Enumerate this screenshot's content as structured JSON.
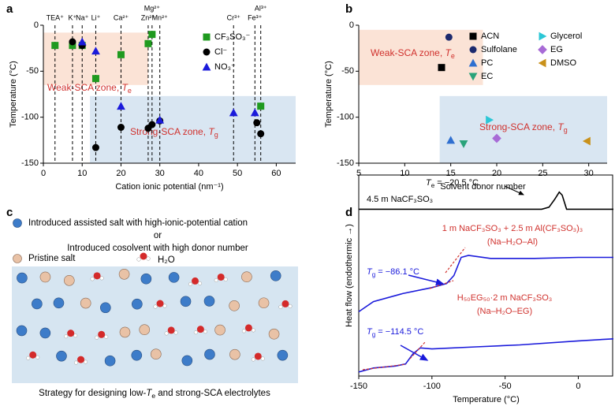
{
  "chart_data": [
    {
      "type": "scatter",
      "panel": "a",
      "ylabel": "Temperature (°C)",
      "xlabel": "Cation ionic potential (nm⁻¹)",
      "xlim": [
        0,
        65
      ],
      "xticks": [
        0,
        10,
        20,
        30,
        40,
        50,
        60
      ],
      "ylim": [
        -150,
        0
      ],
      "yticks": [
        0,
        -50,
        -100,
        -150
      ],
      "reference_lines": {
        "labels": [
          "TEA⁺",
          "K⁺",
          "Na⁺",
          "Li⁺",
          "Ca²⁺",
          "Zn²⁺",
          "Mg²⁺",
          "Mn²⁺",
          "Cr³⁺",
          "Fe³⁺",
          "Al³⁺"
        ],
        "x": [
          3,
          7.5,
          10,
          13.5,
          20,
          27,
          28,
          30,
          49,
          54.5,
          56
        ]
      },
      "zones": [
        {
          "prefix": "Weak-SCA zone, ",
          "symbol": "T",
          "sub": "e",
          "color": "#fbe3d6",
          "label_color": "#d0312d",
          "x_range": [
            0,
            27
          ],
          "y_range": [
            -8,
            -65
          ]
        },
        {
          "prefix": "Strong-SCA zone, ",
          "symbol": "T",
          "sub": "g",
          "color": "#d9e6f2",
          "label_color": "#d0312d",
          "x_range": [
            12,
            65
          ],
          "y_range": [
            -77,
            -150
          ]
        }
      ],
      "series": [
        {
          "name": "CF₃SO₃⁻",
          "color": "#1f9a1f",
          "marker": "square",
          "x": [
            3,
            7.5,
            10,
            13.5,
            20,
            27,
            28,
            56
          ],
          "values": [
            -22,
            -22,
            -22,
            -58,
            -32,
            -20,
            -10,
            -88
          ]
        },
        {
          "name": "Cl⁻",
          "color": "#000000",
          "marker": "circle",
          "x": [
            7.5,
            10,
            13.5,
            20,
            27,
            28,
            30,
            55,
            56
          ],
          "values": [
            -18,
            -22,
            -133,
            -111,
            -112,
            -108,
            -104,
            -106,
            -118
          ]
        },
        {
          "name": "NO₃⁻",
          "color": "#1a1adb",
          "marker": "triangle-up",
          "x": [
            10,
            13.5,
            20,
            30,
            49,
            54.5
          ],
          "values": [
            -18,
            -28,
            -88,
            -103,
            -95,
            -95
          ]
        }
      ]
    },
    {
      "type": "scatter",
      "panel": "b",
      "ylabel": "Temperature (°C)",
      "xlabel": "Solvent donor number",
      "xlim": [
        5,
        32
      ],
      "xticks": [
        5,
        10,
        15,
        20,
        25,
        30
      ],
      "ylim": [
        -150,
        0
      ],
      "yticks": [
        0,
        -50,
        -100,
        -150
      ],
      "zones": [
        {
          "prefix": "Weak-SCA zone, ",
          "symbol": "T",
          "sub": "e",
          "color": "#fbe3d6",
          "label_color": "#d0312d",
          "x_range": [
            5,
            18.5
          ],
          "y_range": [
            -5,
            -65
          ]
        },
        {
          "prefix": "Strong-SCA zone, ",
          "symbol": "T",
          "sub": "g",
          "color": "#d9e6f2",
          "label_color": "#d0312d",
          "x_range": [
            13.8,
            32
          ],
          "y_range": [
            -77,
            -150
          ]
        }
      ],
      "series": [
        {
          "name": "ACN",
          "color": "#000000",
          "marker": "square",
          "x": [
            14
          ],
          "values": [
            -46
          ]
        },
        {
          "name": "Sulfolane",
          "color": "#1c2a6e",
          "marker": "circle",
          "x": [
            14.8
          ],
          "values": [
            -13
          ]
        },
        {
          "name": "PC",
          "color": "#2f6fd0",
          "marker": "triangle-up",
          "x": [
            15
          ],
          "values": [
            -125
          ]
        },
        {
          "name": "EC",
          "color": "#2aa37a",
          "marker": "triangle-down",
          "x": [
            16.4
          ],
          "values": [
            -129
          ]
        },
        {
          "name": "Glycerol",
          "color": "#2cc7d6",
          "marker": "triangle-right",
          "x": [
            19.2
          ],
          "values": [
            -103
          ]
        },
        {
          "name": "EG",
          "color": "#a86bd6",
          "marker": "diamond",
          "x": [
            20
          ],
          "values": [
            -123
          ]
        },
        {
          "name": "DMSO",
          "color": "#c9911a",
          "marker": "triangle-left",
          "x": [
            29.8
          ],
          "values": [
            -126
          ]
        }
      ]
    },
    {
      "type": "line",
      "panel": "d",
      "ylabel": "Heat flow (endothermic →)",
      "xlabel": "Temperature (°C)",
      "xlim": [
        -150,
        24
      ],
      "xticks": [
        -150,
        -100,
        -50,
        0
      ],
      "ylim": [
        0,
        10
      ],
      "series": [
        {
          "color": "#000000",
          "x": [
            -150,
            -25,
            -20,
            -16,
            -13,
            -11,
            -8,
            24
          ],
          "values": [
            8.3,
            8.3,
            8.4,
            8.8,
            9.15,
            9.0,
            8.3,
            8.3
          ]
        },
        {
          "color": "#1a1adb",
          "x": [
            -150,
            -140,
            -120,
            -100,
            -90,
            -85,
            -80,
            -75,
            -60,
            -30,
            0,
            24
          ],
          "values": [
            3.2,
            3.7,
            4.1,
            4.4,
            4.6,
            5.0,
            5.9,
            6.0,
            5.85,
            5.85,
            5.9,
            5.9
          ]
        },
        {
          "color": "#1a1adb",
          "x": [
            -150,
            -140,
            -125,
            -118,
            -113,
            -108,
            -100,
            -70,
            -40,
            0,
            24
          ],
          "values": [
            0.2,
            0.4,
            0.5,
            0.6,
            1.1,
            1.4,
            1.35,
            1.45,
            1.55,
            1.75,
            1.85
          ]
        }
      ],
      "annotations": [
        {
          "suffix": "4.5 m NaCF₃SO₃",
          "color": "#000000"
        },
        {
          "symbol": "T",
          "sub": "e",
          "suffix": " = −20.5 °C",
          "color": "#000000"
        },
        {
          "suffix": "1 m NaCF₃SO₃ + 2.5 m Al(CF₃SO₃)₃",
          "color": "#d0312d"
        },
        {
          "suffix": "(Na–H₂O–Al)",
          "color": "#d0312d"
        },
        {
          "symbol": "T",
          "sub": "g",
          "suffix": " = −86.1 °C",
          "color": "#1a1adb"
        },
        {
          "suffix": "H₅₀EG₅₀·2 m NaCF₃SO₃",
          "color": "#d0312d"
        },
        {
          "suffix": "(Na–H₂O–EG)",
          "color": "#d0312d"
        },
        {
          "symbol": "T",
          "sub": "g",
          "suffix": " = −114.5 °C",
          "color": "#1a1adb"
        }
      ]
    }
  ],
  "diagram": {
    "panel": "c",
    "legend": [
      "Introduced assisted salt with high-ionic-potential cation",
      "or",
      "Introduced cosolvent with high donor number",
      "Pristine salt",
      "H₂O"
    ],
    "caption": {
      "prefix": "Strategy for designing low-",
      "symbol": "T",
      "sub": "e",
      "suffix": " and strong-SCA electrolytes"
    }
  }
}
